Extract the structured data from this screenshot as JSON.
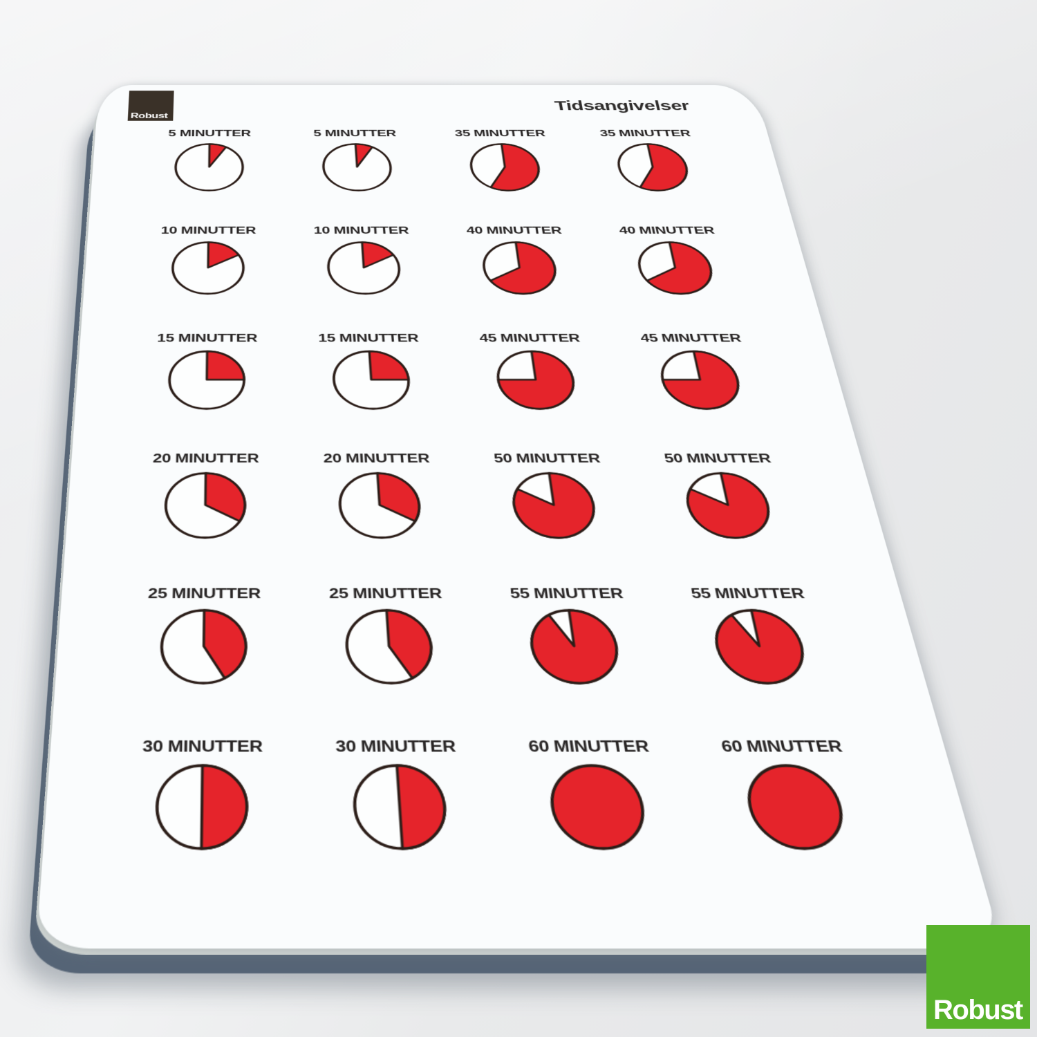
{
  "scene": {
    "background_light": "#f1f2f3",
    "background_dark": "#e4e5e7",
    "board_back_color": "#556476",
    "board_middle_color": "#d7dcd9",
    "sheet_color": "#fafcfd"
  },
  "sheet": {
    "title": "Tidsangivelser",
    "brand_label": "Robust",
    "brand_bg": "#3a3128",
    "title_color": "#2f2d2c"
  },
  "footer_logo": {
    "label": "Robust",
    "bg": "#58b22b"
  },
  "colors": {
    "pie_filled": "#e5242b",
    "pie_empty": "#fdfefe",
    "pie_outline": "#2b1d18",
    "label_text": "#292626"
  },
  "chart_data": {
    "type": "pie",
    "title": "Tidsangivelser",
    "unit": "MINUTTER",
    "total_minutes": 60,
    "fill_rule": "red wedge starts at 12 o'clock and sweeps clockwise by the number of minutes; remainder is white",
    "layout": {
      "rows": 6,
      "cols": 4,
      "legend": "off",
      "grid": "off"
    },
    "cells": [
      {
        "label": "5 MINUTTER",
        "minutes": 5
      },
      {
        "label": "5 MINUTTER",
        "minutes": 5
      },
      {
        "label": "35 MINUTTER",
        "minutes": 35
      },
      {
        "label": "35 MINUTTER",
        "minutes": 35
      },
      {
        "label": "10 MINUTTER",
        "minutes": 10
      },
      {
        "label": "10 MINUTTER",
        "minutes": 10
      },
      {
        "label": "40 MINUTTER",
        "minutes": 40
      },
      {
        "label": "40 MINUTTER",
        "minutes": 40
      },
      {
        "label": "15 MINUTTER",
        "minutes": 15
      },
      {
        "label": "15 MINUTTER",
        "minutes": 15
      },
      {
        "label": "45 MINUTTER",
        "minutes": 45
      },
      {
        "label": "45 MINUTTER",
        "minutes": 45
      },
      {
        "label": "20 MINUTTER",
        "minutes": 20
      },
      {
        "label": "20 MINUTTER",
        "minutes": 20
      },
      {
        "label": "50 MINUTTER",
        "minutes": 50
      },
      {
        "label": "50 MINUTTER",
        "minutes": 50
      },
      {
        "label": "25 MINUTTER",
        "minutes": 25
      },
      {
        "label": "25 MINUTTER",
        "minutes": 25
      },
      {
        "label": "55 MINUTTER",
        "minutes": 55
      },
      {
        "label": "55 MINUTTER",
        "minutes": 55
      },
      {
        "label": "30 MINUTTER",
        "minutes": 30
      },
      {
        "label": "30 MINUTTER",
        "minutes": 30
      },
      {
        "label": "60 MINUTTER",
        "minutes": 60
      },
      {
        "label": "60 MINUTTER",
        "minutes": 60
      }
    ]
  }
}
